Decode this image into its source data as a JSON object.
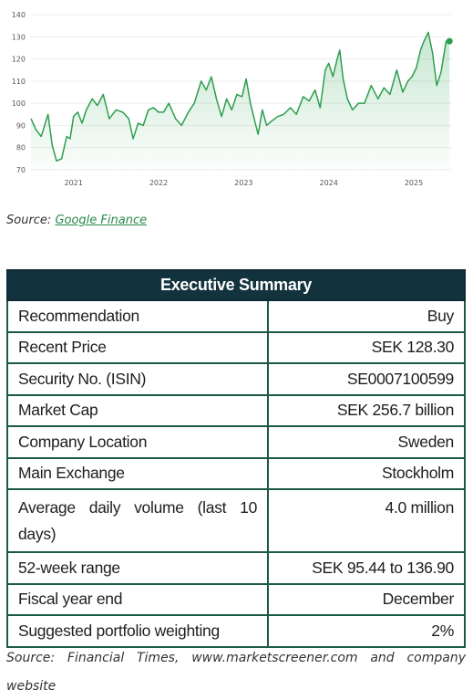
{
  "chart_data": {
    "type": "area",
    "title": "",
    "xlabel": "",
    "ylabel": "",
    "ylim": [
      70,
      140
    ],
    "y_ticks": [
      70,
      80,
      90,
      100,
      110,
      120,
      130,
      140
    ],
    "x_ticks": [
      "2021",
      "2022",
      "2023",
      "2024",
      "2025"
    ],
    "xlim": [
      2020.5,
      2025.45
    ],
    "grid": true,
    "color": "#2e9e4e",
    "series": [
      {
        "x": [
          2020.5,
          2020.56,
          2020.62,
          2020.7,
          2020.75,
          2020.8,
          2020.86,
          2020.92,
          2020.96,
          2021.0,
          2021.05,
          2021.1,
          2021.15,
          2021.22,
          2021.28,
          2021.35,
          2021.42,
          2021.5,
          2021.58,
          2021.65,
          2021.7,
          2021.76,
          2021.82,
          2021.88,
          2021.94,
          2022.0,
          2022.06,
          2022.12,
          2022.2,
          2022.27,
          2022.35,
          2022.42,
          2022.5,
          2022.56,
          2022.62,
          2022.68,
          2022.74,
          2022.8,
          2022.86,
          2022.92,
          2022.98,
          2023.03,
          2023.08,
          2023.13,
          2023.17,
          2023.22,
          2023.27,
          2023.33,
          2023.4,
          2023.47,
          2023.55,
          2023.62,
          2023.7,
          2023.77,
          2023.84,
          2023.9,
          2023.96,
          2024.0,
          2024.05,
          2024.1,
          2024.13,
          2024.17,
          2024.22,
          2024.28,
          2024.35,
          2024.42,
          2024.5,
          2024.58,
          2024.65,
          2024.72,
          2024.8,
          2024.87,
          2024.93,
          2024.98,
          2025.03,
          2025.08,
          2025.12,
          2025.17,
          2025.22,
          2025.27,
          2025.32,
          2025.38,
          2025.42
        ],
        "y": [
          93,
          88,
          85,
          95,
          81,
          74,
          75,
          85,
          84,
          94,
          96,
          91,
          97,
          102,
          99,
          104,
          93,
          97,
          96,
          93,
          84,
          91,
          90,
          97,
          98,
          96,
          96,
          100,
          93,
          90,
          96,
          100,
          110,
          106,
          112,
          102,
          94,
          102,
          97,
          104,
          103,
          111,
          100,
          92,
          86,
          97,
          90,
          92,
          94,
          95,
          98,
          95,
          103,
          101,
          106,
          98,
          115,
          118,
          112,
          120,
          124,
          111,
          102,
          97,
          100,
          100,
          108,
          102,
          107,
          104,
          115,
          105,
          110,
          112,
          116,
          124,
          128,
          132,
          123,
          108,
          114,
          128,
          128
        ]
      }
    ]
  },
  "chart_source": {
    "prefix": "Source: ",
    "link_text": "Google Finance"
  },
  "summary": {
    "title": "Executive Summary",
    "rows": [
      {
        "label": "Recommendation",
        "value": "Buy"
      },
      {
        "label": "Recent Price",
        "value": "SEK 128.30"
      },
      {
        "label": "Security No. (ISIN)",
        "value": "SE0007100599"
      },
      {
        "label": "Market Cap",
        "value": "SEK 256.7 billion"
      },
      {
        "label": "Company Location",
        "value": "Sweden"
      },
      {
        "label": "Main Exchange",
        "value": "Stockholm"
      },
      {
        "label": "Average daily volume (last 10 days)",
        "value": "4.0 million"
      },
      {
        "label": "52-week range",
        "value": "SEK 95.44 to 136.90"
      },
      {
        "label": "Fiscal year end",
        "value": "December"
      },
      {
        "label": "Suggested portfolio weighting",
        "value": "2%"
      }
    ],
    "source": "Source: Financial Times, www.marketscreener.com and company website"
  }
}
